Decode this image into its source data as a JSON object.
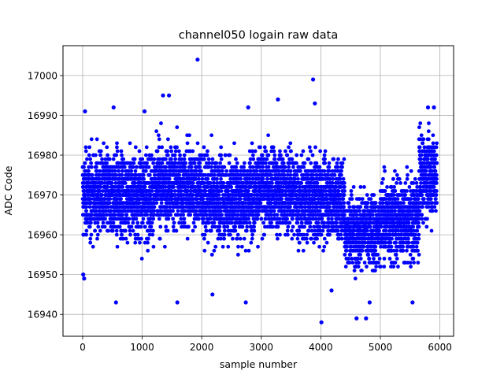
{
  "chart_data": {
    "type": "scatter",
    "title": "channel050 logain raw data",
    "xlabel": "sample number",
    "ylabel": "ADC Code",
    "xlim": [
      -330,
      6230
    ],
    "ylim": [
      16934.5,
      17007.5
    ],
    "xticks": [
      0,
      1000,
      2000,
      3000,
      4000,
      5000,
      6000
    ],
    "yticks": [
      16940,
      16950,
      16960,
      16970,
      16980,
      16990,
      17000
    ],
    "grid": true,
    "color": "#0000ff",
    "n_points": 5950,
    "sample_step": 1,
    "segments": [
      {
        "from": 0,
        "to": 1200,
        "center": 16970,
        "spread": 8
      },
      {
        "from": 1200,
        "to": 2000,
        "center": 16972,
        "spread": 8
      },
      {
        "from": 2000,
        "to": 2800,
        "center": 16969,
        "spread": 8
      },
      {
        "from": 2800,
        "to": 3600,
        "center": 16971,
        "spread": 8
      },
      {
        "from": 3600,
        "to": 4400,
        "center": 16969,
        "spread": 8
      },
      {
        "from": 4400,
        "to": 5000,
        "center": 16961,
        "spread": 7
      },
      {
        "from": 5000,
        "to": 5650,
        "center": 16964,
        "spread": 8
      },
      {
        "from": 5650,
        "to": 5950,
        "center": 16975,
        "spread": 8
      }
    ],
    "outliers": [
      {
        "x": 1930,
        "y": 17004
      },
      {
        "x": 3870,
        "y": 16999
      },
      {
        "x": 4010,
        "y": 16938
      },
      {
        "x": 3280,
        "y": 16994
      },
      {
        "x": 1350,
        "y": 16995
      },
      {
        "x": 1450,
        "y": 16995
      },
      {
        "x": 3900,
        "y": 16993
      },
      {
        "x": 40,
        "y": 16991
      },
      {
        "x": 1040,
        "y": 16991
      },
      {
        "x": 520,
        "y": 16992
      },
      {
        "x": 2780,
        "y": 16992
      },
      {
        "x": 560,
        "y": 16943
      },
      {
        "x": 1590,
        "y": 16943
      },
      {
        "x": 2740,
        "y": 16943
      },
      {
        "x": 4600,
        "y": 16939
      },
      {
        "x": 4760,
        "y": 16939
      },
      {
        "x": 4820,
        "y": 16943
      },
      {
        "x": 5540,
        "y": 16943
      },
      {
        "x": 4180,
        "y": 16946
      },
      {
        "x": 2180,
        "y": 16945
      },
      {
        "x": 10,
        "y": 16950
      },
      {
        "x": 25,
        "y": 16949
      },
      {
        "x": 5800,
        "y": 16992
      },
      {
        "x": 5900,
        "y": 16992
      }
    ]
  }
}
